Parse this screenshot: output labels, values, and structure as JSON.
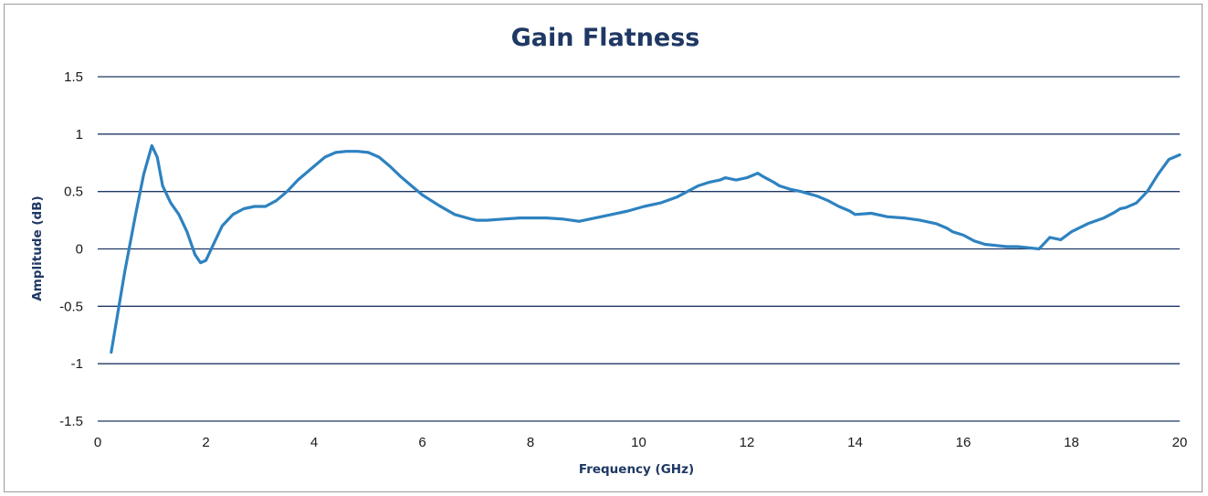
{
  "chart_data": {
    "type": "line",
    "title": "Gain Flatness",
    "xlabel": "Frequency (GHz)",
    "ylabel": "Amplitude (dB)",
    "xlim": [
      0,
      20
    ],
    "ylim": [
      -1.5,
      1.5
    ],
    "x_ticks": [
      "0",
      "2",
      "4",
      "6",
      "8",
      "10",
      "12",
      "14",
      "16",
      "18",
      "20"
    ],
    "y_ticks": [
      "1.5",
      "1",
      "0.5",
      "0",
      "-0.5",
      "-1",
      "-1.5"
    ],
    "grid": true,
    "legend": "none",
    "series_color": "#2e82c0",
    "series": [
      {
        "x": [
          0.25,
          0.5,
          0.7,
          0.85,
          1.0,
          1.1,
          1.2,
          1.35,
          1.5,
          1.65,
          1.8,
          1.9,
          2.0,
          2.15,
          2.3,
          2.5,
          2.7,
          2.9,
          3.1,
          3.3,
          3.5,
          3.7,
          4.0,
          4.2,
          4.4,
          4.6,
          4.8,
          5.0,
          5.2,
          5.4,
          5.6,
          5.8,
          6.0,
          6.3,
          6.6,
          6.9,
          7.0,
          7.2,
          7.5,
          7.8,
          8.0,
          8.3,
          8.6,
          8.9,
          9.2,
          9.5,
          9.8,
          10.1,
          10.4,
          10.7,
          10.9,
          11.1,
          11.3,
          11.5,
          11.6,
          11.8,
          12.0,
          12.2,
          12.3,
          12.5,
          12.6,
          12.8,
          13.0,
          13.3,
          13.5,
          13.7,
          13.9,
          14.0,
          14.3,
          14.6,
          14.9,
          15.2,
          15.5,
          15.7,
          15.8,
          16.0,
          16.2,
          16.4,
          16.6,
          16.8,
          17.0,
          17.2,
          17.4,
          17.5,
          17.6,
          17.8,
          18.0,
          18.3,
          18.6,
          18.8,
          18.9,
          19.0,
          19.2,
          19.4,
          19.6,
          19.8,
          20.0
        ],
        "y": [
          -0.9,
          -0.2,
          0.3,
          0.65,
          0.9,
          0.8,
          0.55,
          0.4,
          0.3,
          0.15,
          -0.05,
          -0.12,
          -0.1,
          0.05,
          0.2,
          0.3,
          0.35,
          0.37,
          0.37,
          0.42,
          0.5,
          0.6,
          0.72,
          0.8,
          0.84,
          0.85,
          0.85,
          0.84,
          0.8,
          0.72,
          0.63,
          0.55,
          0.47,
          0.38,
          0.3,
          0.26,
          0.25,
          0.25,
          0.26,
          0.27,
          0.27,
          0.27,
          0.26,
          0.24,
          0.27,
          0.3,
          0.33,
          0.37,
          0.4,
          0.45,
          0.5,
          0.55,
          0.58,
          0.6,
          0.62,
          0.6,
          0.62,
          0.66,
          0.63,
          0.58,
          0.55,
          0.52,
          0.5,
          0.46,
          0.42,
          0.37,
          0.33,
          0.3,
          0.31,
          0.28,
          0.27,
          0.25,
          0.22,
          0.18,
          0.15,
          0.12,
          0.07,
          0.04,
          0.03,
          0.02,
          0.02,
          0.01,
          0.0,
          0.05,
          0.1,
          0.08,
          0.15,
          0.22,
          0.27,
          0.32,
          0.35,
          0.36,
          0.4,
          0.5,
          0.65,
          0.78,
          0.82
        ]
      }
    ]
  }
}
